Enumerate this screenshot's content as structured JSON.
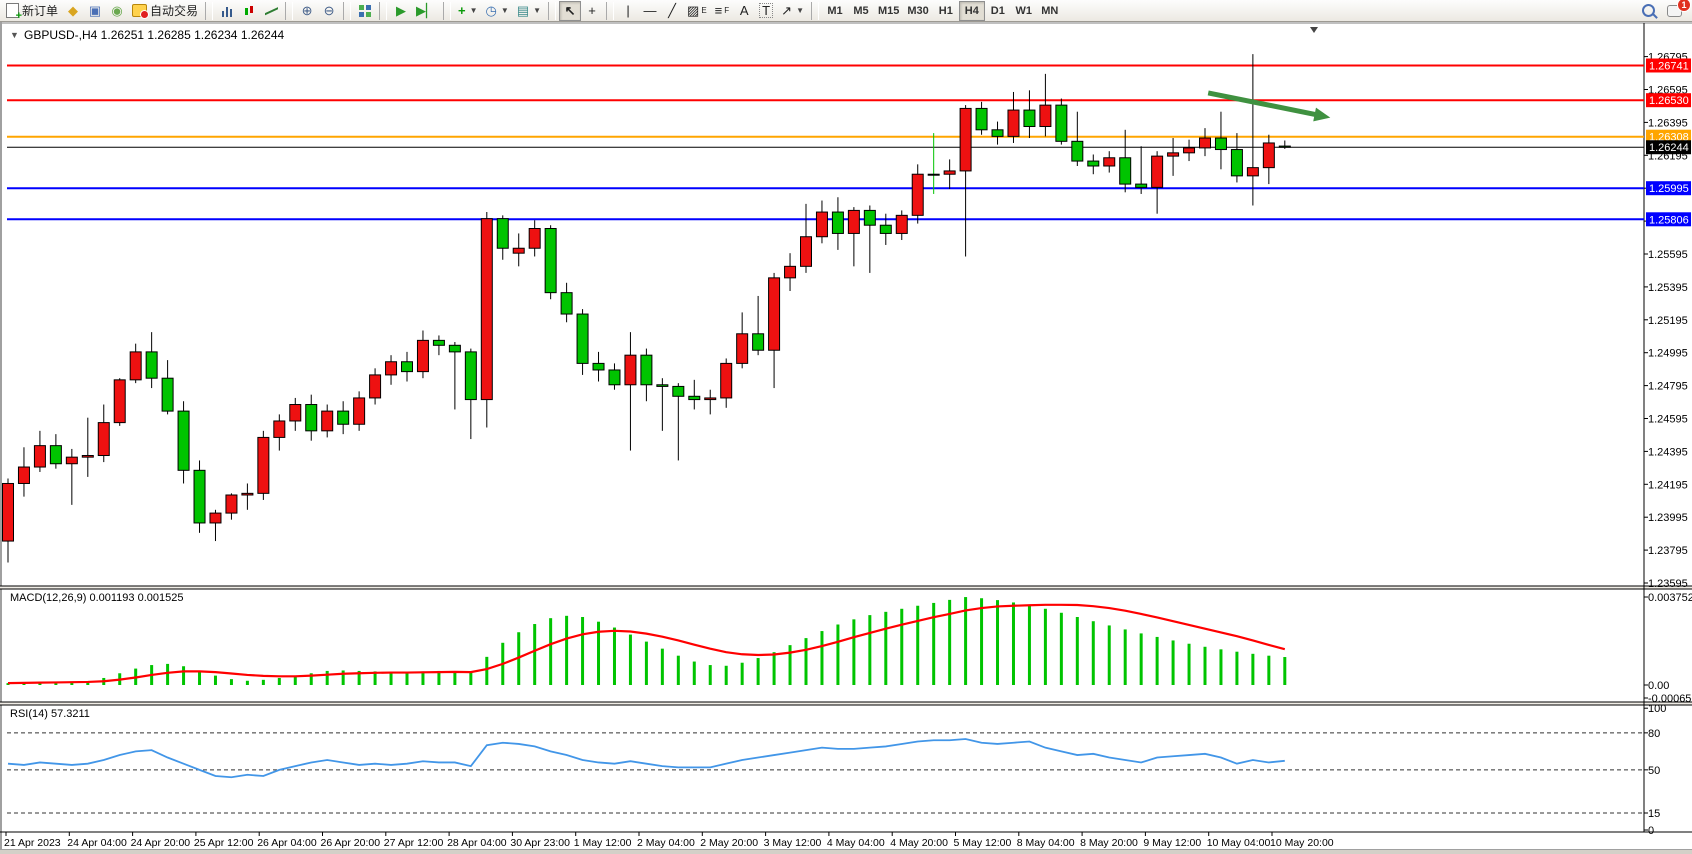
{
  "toolbar": {
    "new_order_label": "新订单",
    "autotrading_label": "自动交易",
    "notification_badge": "1",
    "timeframes": [
      "M1",
      "M5",
      "M15",
      "M30",
      "H1",
      "H4",
      "D1",
      "W1",
      "MN"
    ],
    "active_timeframe": "H4",
    "icon_names": [
      "new-order",
      "market",
      "community",
      "signals",
      "autotrading",
      "bar-chart",
      "candlestick-chart",
      "line-chart",
      "zoom-in",
      "zoom-out",
      "tile-windows",
      "auto-scroll",
      "chart-shift",
      "indicators",
      "periods",
      "templates",
      "cursor",
      "crosshair",
      "vertical-line",
      "horizontal-line",
      "trendline",
      "equidistant-channel",
      "fibonacci",
      "text",
      "text-label",
      "arrows",
      "search",
      "chat"
    ]
  },
  "chart": {
    "symbol_title": "GBPUSD-,H4",
    "ohlc_text": "1.26251 1.26285 1.26234 1.26244",
    "macd_label": "MACD(12,26,9) 0.001193 0.001525",
    "rsi_label": "RSI(14) 57.3211"
  },
  "chart_data": {
    "type": "candlestick",
    "symbol": "GBPUSD-",
    "timeframe": "H4",
    "title": "GBPUSD-,H4",
    "current_ohlc": {
      "open": 1.26251,
      "high": 1.26285,
      "low": 1.26234,
      "close": 1.26244
    },
    "up_color": "#EE1111",
    "down_color": "#00C400",
    "outline_color": "#000000",
    "ylim": [
      1.23595,
      1.26995
    ],
    "price_ticks": [
      "1.26795",
      "1.26595",
      "1.26395",
      "1.26195",
      "1.25995",
      "1.25795",
      "1.25595",
      "1.25395",
      "1.25195",
      "1.24995",
      "1.24795",
      "1.24595",
      "1.24395",
      "1.24195",
      "1.23995",
      "1.23795",
      "1.23595"
    ],
    "x_labels": [
      "21 Apr 2023",
      "24 Apr 04:00",
      "24 Apr 20:00",
      "25 Apr 12:00",
      "26 Apr 04:00",
      "26 Apr 20:00",
      "27 Apr 12:00",
      "28 Apr 04:00",
      "30 Apr 23:00",
      "1 May 12:00",
      "2 May 04:00",
      "2 May 20:00",
      "3 May 12:00",
      "4 May 04:00",
      "4 May 20:00",
      "5 May 12:00",
      "8 May 04:00",
      "8 May 20:00",
      "9 May 12:00",
      "10 May 04:00",
      "10 May 20:00"
    ],
    "candles": [
      [
        1.2385,
        1.2423,
        1.2372,
        1.242
      ],
      [
        1.242,
        1.2442,
        1.2412,
        1.243
      ],
      [
        1.243,
        1.2452,
        1.2427,
        1.2443
      ],
      [
        1.2443,
        1.245,
        1.2429,
        1.2432
      ],
      [
        1.2432,
        1.2441,
        1.2407,
        1.2436
      ],
      [
        1.2436,
        1.246,
        1.2424,
        1.2437
      ],
      [
        1.2437,
        1.2468,
        1.2433,
        1.2457
      ],
      [
        1.2457,
        1.2484,
        1.2455,
        1.2483
      ],
      [
        1.2483,
        1.2505,
        1.2481,
        1.25
      ],
      [
        1.25,
        1.2512,
        1.2478,
        1.2484
      ],
      [
        1.2484,
        1.2495,
        1.2462,
        1.2464
      ],
      [
        1.2464,
        1.247,
        1.242,
        1.2428
      ],
      [
        1.2428,
        1.2434,
        1.239,
        1.2396
      ],
      [
        1.2396,
        1.2404,
        1.2385,
        1.2402
      ],
      [
        1.2402,
        1.2414,
        1.2398,
        1.2413
      ],
      [
        1.2413,
        1.242,
        1.2404,
        1.2414
      ],
      [
        1.2414,
        1.2452,
        1.241,
        1.2448
      ],
      [
        1.2448,
        1.2462,
        1.244,
        1.2458
      ],
      [
        1.2458,
        1.2472,
        1.2452,
        1.2468
      ],
      [
        1.2468,
        1.2474,
        1.2446,
        1.2452
      ],
      [
        1.2452,
        1.2468,
        1.2448,
        1.2464
      ],
      [
        1.2464,
        1.247,
        1.245,
        1.2456
      ],
      [
        1.2456,
        1.2476,
        1.2452,
        1.2472
      ],
      [
        1.2472,
        1.249,
        1.2468,
        1.2486
      ],
      [
        1.2486,
        1.2498,
        1.248,
        1.2494
      ],
      [
        1.2494,
        1.25,
        1.2482,
        1.2488
      ],
      [
        1.2488,
        1.2513,
        1.2484,
        1.2507
      ],
      [
        1.2507,
        1.251,
        1.2498,
        1.2504
      ],
      [
        1.2504,
        1.2506,
        1.2465,
        1.25
      ],
      [
        1.25,
        1.2502,
        1.2447,
        1.2471
      ],
      [
        1.2471,
        1.2585,
        1.2454,
        1.2581
      ],
      [
        1.2581,
        1.2583,
        1.2556,
        1.2563
      ],
      [
        1.256,
        1.2572,
        1.2552,
        1.2563
      ],
      [
        1.2563,
        1.258,
        1.2558,
        1.2575
      ],
      [
        1.2575,
        1.2577,
        1.2532,
        1.2536
      ],
      [
        1.2536,
        1.2542,
        1.2518,
        1.2523
      ],
      [
        1.2523,
        1.2526,
        1.2486,
        1.2493
      ],
      [
        1.2493,
        1.25,
        1.2482,
        1.2489
      ],
      [
        1.2489,
        1.2493,
        1.2477,
        1.248
      ],
      [
        1.248,
        1.2512,
        1.244,
        1.2498
      ],
      [
        1.2498,
        1.2502,
        1.247,
        1.248
      ],
      [
        1.248,
        1.2484,
        1.2452,
        1.2479
      ],
      [
        1.2479,
        1.2481,
        1.2434,
        1.2473
      ],
      [
        1.2473,
        1.2483,
        1.2465,
        1.2471
      ],
      [
        1.2471,
        1.2477,
        1.2462,
        1.2472
      ],
      [
        1.2472,
        1.2496,
        1.2466,
        1.2493
      ],
      [
        1.2493,
        1.2524,
        1.249,
        1.2511
      ],
      [
        1.2511,
        1.2534,
        1.2498,
        1.2501
      ],
      [
        1.2501,
        1.2548,
        1.2478,
        1.2545
      ],
      [
        1.2545,
        1.256,
        1.2537,
        1.2552
      ],
      [
        1.2552,
        1.259,
        1.2548,
        1.257
      ],
      [
        1.257,
        1.2592,
        1.2566,
        1.2585
      ],
      [
        1.2585,
        1.2594,
        1.2562,
        1.2572
      ],
      [
        1.2572,
        1.2588,
        1.2552,
        1.2586
      ],
      [
        1.2586,
        1.2589,
        1.2548,
        1.2577
      ],
      [
        1.2577,
        1.2584,
        1.2565,
        1.2572
      ],
      [
        1.2572,
        1.2586,
        1.2568,
        1.2583
      ],
      [
        1.2583,
        1.2614,
        1.2578,
        1.2608
      ],
      [
        1.2608,
        1.2633,
        1.2596,
        1.2608
      ],
      [
        1.2608,
        1.2617,
        1.2599,
        1.261
      ],
      [
        1.261,
        1.265,
        1.2558,
        1.2648
      ],
      [
        1.2648,
        1.2652,
        1.2632,
        1.2635
      ],
      [
        1.2635,
        1.264,
        1.2626,
        1.2631
      ],
      [
        1.2631,
        1.2658,
        1.2627,
        1.2647
      ],
      [
        1.2647,
        1.2659,
        1.263,
        1.2637
      ],
      [
        1.2637,
        1.2669,
        1.2631,
        1.265
      ],
      [
        1.265,
        1.2654,
        1.2626,
        1.2628
      ],
      [
        1.2628,
        1.2646,
        1.2613,
        1.2616
      ],
      [
        1.2616,
        1.262,
        1.2608,
        1.2613
      ],
      [
        1.2613,
        1.2622,
        1.2609,
        1.2618
      ],
      [
        1.2618,
        1.2635,
        1.2597,
        1.2602
      ],
      [
        1.2602,
        1.2625,
        1.2596,
        1.26
      ],
      [
        1.26,
        1.2622,
        1.2584,
        1.2619
      ],
      [
        1.2619,
        1.263,
        1.2607,
        1.2621
      ],
      [
        1.2621,
        1.2629,
        1.2616,
        1.2624
      ],
      [
        1.2624,
        1.2636,
        1.2619,
        1.263
      ],
      [
        1.263,
        1.2646,
        1.2611,
        1.2623
      ],
      [
        1.2623,
        1.2633,
        1.2603,
        1.2607
      ],
      [
        1.2607,
        1.2681,
        1.2589,
        1.2612
      ],
      [
        1.2612,
        1.2632,
        1.2602,
        1.2627
      ],
      [
        1.26251,
        1.26285,
        1.26234,
        1.26244
      ]
    ],
    "levels": [
      {
        "price": 1.26741,
        "color": "#FF0000",
        "label": "1.26741",
        "type": "resistance"
      },
      {
        "price": 1.2653,
        "color": "#FF0000",
        "label": "1.26530",
        "type": "resistance"
      },
      {
        "price": 1.26308,
        "color": "#FFA500",
        "label": "1.26308",
        "type": "pivot"
      },
      {
        "price": 1.26244,
        "color": "#000000",
        "label": "1.26244",
        "type": "current-price"
      },
      {
        "price": 1.25995,
        "color": "#0000FF",
        "label": "1.25995",
        "type": "support"
      },
      {
        "price": 1.25806,
        "color": "#0000FF",
        "label": "1.25806",
        "type": "support"
      }
    ],
    "annotation_arrow": {
      "from_index": 75.2,
      "from_price": 1.26574,
      "to_index": 82.6,
      "to_price": 1.2643,
      "color": "#3F9140"
    },
    "macd": {
      "type": "bar",
      "label": "MACD(12,26,9)",
      "value": 0.001193,
      "signal_value": 0.001525,
      "ylim": [
        -0.000656,
        0.003752
      ],
      "axis_labels": [
        "0.003752",
        "0.00",
        "-0.000656"
      ],
      "bar_color": "#00C400",
      "signal_color": "#FF0000",
      "histogram": [
        8e-05,
        0.0001,
        0.00012,
        0.00014,
        0.00015,
        0.00016,
        0.0003,
        0.0005,
        0.0007,
        0.00085,
        0.0009,
        0.0008,
        0.0006,
        0.0004,
        0.00025,
        0.00018,
        0.00022,
        0.0003,
        0.0004,
        0.0005,
        0.0006,
        0.00062,
        0.0006,
        0.00058,
        0.00056,
        0.00055,
        0.00058,
        0.0006,
        0.00058,
        0.00052,
        0.0012,
        0.0018,
        0.00225,
        0.0026,
        0.00285,
        0.00295,
        0.0029,
        0.0027,
        0.00245,
        0.00215,
        0.00185,
        0.00155,
        0.00125,
        0.001,
        0.00085,
        0.00082,
        0.00095,
        0.00115,
        0.0014,
        0.0017,
        0.002,
        0.0023,
        0.00258,
        0.0028,
        0.00298,
        0.00312,
        0.00325,
        0.00338,
        0.0035,
        0.00363,
        0.00375,
        0.0037,
        0.00362,
        0.00352,
        0.0034,
        0.00325,
        0.00308,
        0.0029,
        0.00272,
        0.00254,
        0.00237,
        0.0022,
        0.00205,
        0.0019,
        0.00176,
        0.00163,
        0.00152,
        0.00142,
        0.00133,
        0.00125,
        0.001193
      ],
      "signal": [
        8e-05,
        9e-05,
        0.0001,
        0.00011,
        0.00012,
        0.00013,
        0.00016,
        0.00023,
        0.00032,
        0.00043,
        0.00052,
        0.00058,
        0.00058,
        0.00055,
        0.00049,
        0.00043,
        0.00039,
        0.00037,
        0.00037,
        0.0004,
        0.00044,
        0.00048,
        0.0005,
        0.00052,
        0.00053,
        0.00053,
        0.00054,
        0.00055,
        0.00056,
        0.00055,
        0.00068,
        0.0009,
        0.00117,
        0.00146,
        0.00174,
        0.00198,
        0.00216,
        0.00227,
        0.00231,
        0.00228,
        0.00219,
        0.00206,
        0.0019,
        0.00172,
        0.00155,
        0.0014,
        0.00131,
        0.00128,
        0.0013,
        0.00138,
        0.0015,
        0.00166,
        0.00184,
        0.00204,
        0.00222,
        0.0024,
        0.00257,
        0.00273,
        0.00289,
        0.00303,
        0.00318,
        0.00328,
        0.00335,
        0.00338,
        0.0034,
        0.00342,
        0.00342,
        0.00341,
        0.00336,
        0.00328,
        0.00317,
        0.00303,
        0.00288,
        0.00272,
        0.00256,
        0.0024,
        0.00224,
        0.00208,
        0.0019,
        0.00171,
        0.001525
      ]
    },
    "rsi": {
      "type": "line",
      "label": "RSI(14)",
      "value": 57.3211,
      "ylim": [
        0,
        100
      ],
      "dashed_levels": [
        80,
        50,
        15
      ],
      "axis_labels": [
        "100",
        "80",
        "50",
        "15",
        "0"
      ],
      "line_color": "#4296E8",
      "values": [
        55,
        54,
        56,
        55,
        54,
        55,
        58,
        62,
        65,
        66,
        60,
        55,
        50,
        45,
        44,
        46,
        45,
        50,
        53,
        56,
        58,
        56,
        54,
        55,
        54,
        55,
        57,
        56,
        56,
        53,
        70,
        72,
        71,
        69,
        65,
        62,
        58,
        56,
        55,
        57,
        55,
        53,
        52,
        52,
        52,
        55,
        58,
        60,
        62,
        64,
        66,
        68,
        67,
        67,
        68,
        69,
        71,
        73,
        74,
        74,
        75,
        72,
        71,
        72,
        73,
        68,
        65,
        62,
        63,
        60,
        58,
        56,
        60,
        61,
        62,
        63,
        60,
        55,
        58,
        56,
        57.32
      ]
    }
  }
}
